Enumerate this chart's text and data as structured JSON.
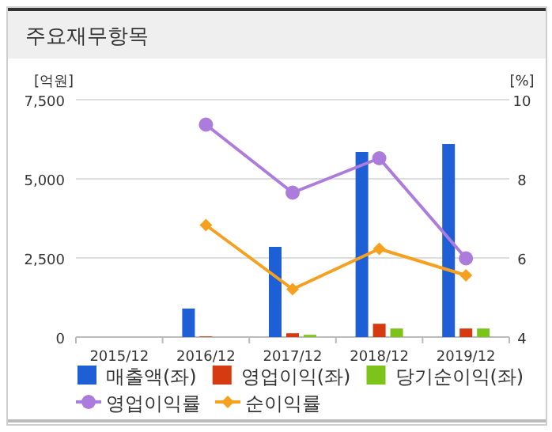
{
  "chart_data": {
    "type": "bar",
    "title": "주요재무항목",
    "ylabel": "[억원]",
    "y2label": "[%]",
    "categories": [
      "2015/12",
      "2016/12",
      "2017/12",
      "2018/12",
      "2019/12"
    ],
    "series": [
      {
        "name": "매출액(좌)",
        "color": "#1f5fd6",
        "values": [
          null,
          900,
          2850,
          5850,
          6100
        ]
      },
      {
        "name": "영업이익(좌)",
        "color": "#d63a10",
        "values": [
          null,
          20,
          120,
          420,
          270
        ]
      },
      {
        "name": "당기순이익(좌)",
        "color": "#7cc31c",
        "values": [
          null,
          null,
          70,
          270,
          270
        ]
      },
      {
        "name": "영업이익률",
        "type": "line",
        "axis": "y2",
        "marker": "circle",
        "color": "#ac7cdc",
        "values": [
          null,
          9.37,
          7.65,
          8.52,
          5.99
        ]
      },
      {
        "name": "순이익률",
        "type": "line",
        "axis": "y2",
        "marker": "diamond",
        "color": "#f5a01e",
        "values": [
          null,
          6.83,
          5.21,
          6.23,
          5.56
        ]
      }
    ],
    "ylim": [
      0,
      7500
    ],
    "yticks": [
      {
        "value": 0,
        "label": "0"
      },
      {
        "value": 2500,
        "label": "2,500"
      },
      {
        "value": 5000,
        "label": "5,000"
      },
      {
        "value": 7500,
        "label": "7,500"
      }
    ],
    "y2lim": [
      4,
      10
    ],
    "y2ticks": [
      4,
      6,
      8,
      10
    ],
    "grid": "y",
    "legend": "bottom"
  }
}
